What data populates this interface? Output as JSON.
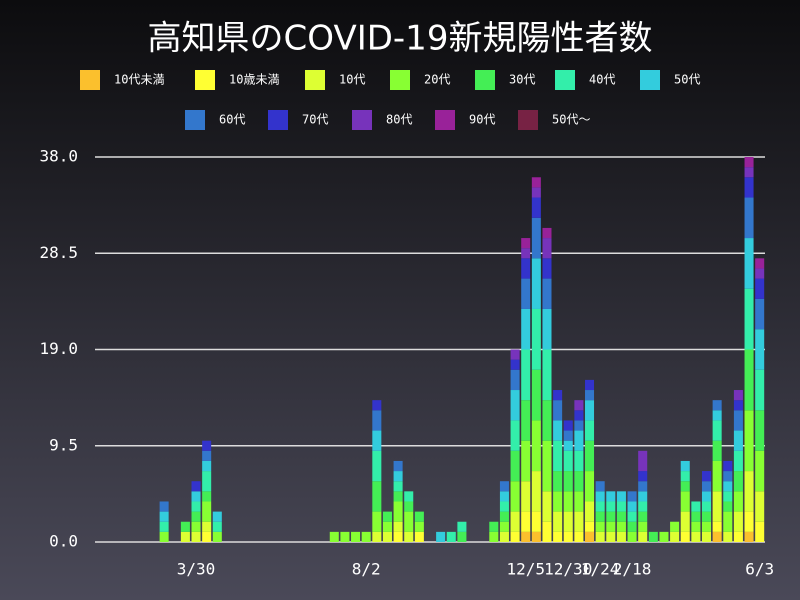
{
  "chart_data": {
    "type": "stacked_bar",
    "title": "高知県のCOVID-19新規陽性者数",
    "categories": [
      null,
      null,
      null,
      null,
      null,
      null,
      null,
      null,
      null,
      "3/30",
      null,
      null,
      null,
      null,
      null,
      null,
      null,
      null,
      null,
      null,
      null,
      null,
      null,
      null,
      null,
      "8/2",
      null,
      null,
      null,
      null,
      null,
      null,
      null,
      null,
      null,
      null,
      null,
      null,
      null,
      null,
      "12/5",
      null,
      null,
      null,
      "12/30",
      null,
      null,
      "1/24",
      null,
      null,
      "2/18",
      null,
      null,
      null,
      null,
      null,
      null,
      null,
      null,
      null,
      null,
      null,
      "6/3"
    ],
    "ylim": [
      0,
      38
    ],
    "yticks": [
      {
        "value": 0,
        "label": "0.0"
      },
      9.5,
      {
        "value": 19,
        "label": "19.0"
      },
      28.5,
      {
        "value": 38,
        "label": "38.0"
      }
    ],
    "grid": true,
    "series": [
      {
        "name": "10代未満",
        "color": "#fbc02d",
        "values": [
          0,
          0,
          0,
          0,
          0,
          0,
          0,
          0,
          0,
          0,
          0,
          0,
          0,
          0,
          0,
          0,
          0,
          0,
          0,
          0,
          0,
          0,
          0,
          0,
          0,
          0,
          0,
          0,
          0,
          0,
          0,
          0,
          0,
          0,
          0,
          0,
          0,
          0,
          0,
          0,
          1,
          1,
          0,
          0,
          0,
          0,
          1,
          0,
          0,
          0,
          0,
          0,
          0,
          0,
          0,
          0,
          0,
          0,
          1,
          0,
          0,
          1,
          0
        ]
      },
      {
        "name": "10歳未満",
        "color": "#ffff33",
        "values": [
          0,
          0,
          0,
          0,
          0,
          0,
          0,
          0,
          0,
          0,
          1,
          0,
          0,
          0,
          0,
          0,
          0,
          0,
          0,
          0,
          0,
          0,
          0,
          0,
          0,
          0,
          0,
          0,
          1,
          0,
          1,
          0,
          0,
          0,
          0,
          0,
          0,
          0,
          0,
          1,
          2,
          2,
          2,
          1,
          1,
          1,
          1,
          0,
          0,
          0,
          0,
          0,
          0,
          0,
          0,
          1,
          0,
          0,
          1,
          0,
          1,
          2,
          2
        ]
      },
      {
        "name": "10代",
        "color": "#ddff33",
        "values": [
          0,
          0,
          0,
          0,
          0,
          0,
          0,
          0,
          1,
          1,
          1,
          0,
          0,
          0,
          0,
          0,
          0,
          0,
          0,
          0,
          0,
          0,
          0,
          0,
          0,
          0,
          1,
          1,
          1,
          1,
          0,
          0,
          0,
          0,
          0,
          0,
          0,
          0,
          1,
          2,
          3,
          4,
          3,
          2,
          2,
          2,
          2,
          1,
          1,
          1,
          0,
          1,
          0,
          0,
          1,
          2,
          1,
          1,
          3,
          1,
          2,
          4,
          3
        ]
      },
      {
        "name": "20代",
        "color": "#88ff33",
        "values": [
          0,
          0,
          0,
          0,
          0,
          0,
          1,
          0,
          0,
          1,
          2,
          1,
          0,
          0,
          0,
          0,
          0,
          0,
          0,
          0,
          0,
          0,
          1,
          1,
          1,
          1,
          2,
          1,
          2,
          2,
          1,
          0,
          0,
          0,
          0,
          0,
          0,
          1,
          1,
          3,
          4,
          5,
          5,
          2,
          2,
          2,
          3,
          1,
          1,
          1,
          1,
          1,
          0,
          1,
          1,
          2,
          1,
          1,
          3,
          2,
          2,
          6,
          4
        ]
      },
      {
        "name": "30代",
        "color": "#44ee55",
        "values": [
          0,
          0,
          0,
          0,
          0,
          0,
          0,
          0,
          1,
          1,
          1,
          0,
          0,
          0,
          0,
          0,
          0,
          0,
          0,
          0,
          0,
          0,
          0,
          0,
          0,
          0,
          3,
          1,
          1,
          1,
          1,
          0,
          0,
          0,
          1,
          0,
          0,
          1,
          1,
          3,
          4,
          5,
          4,
          2,
          2,
          2,
          3,
          1,
          1,
          1,
          1,
          1,
          1,
          0,
          0,
          1,
          1,
          1,
          2,
          1,
          2,
          6,
          4
        ]
      },
      {
        "name": "40代",
        "color": "#33eeaa",
        "values": [
          0,
          0,
          0,
          0,
          0,
          0,
          1,
          0,
          0,
          1,
          2,
          1,
          0,
          0,
          0,
          0,
          0,
          0,
          0,
          0,
          0,
          0,
          0,
          0,
          0,
          0,
          3,
          0,
          1,
          1,
          0,
          0,
          0,
          1,
          1,
          0,
          0,
          0,
          1,
          3,
          5,
          6,
          5,
          3,
          2,
          2,
          2,
          1,
          1,
          1,
          1,
          1,
          0,
          0,
          0,
          1,
          1,
          1,
          2,
          1,
          2,
          6,
          4
        ]
      },
      {
        "name": "50代",
        "color": "#33ccdd",
        "values": [
          0,
          0,
          0,
          0,
          0,
          0,
          1,
          0,
          0,
          1,
          1,
          1,
          0,
          0,
          0,
          0,
          0,
          0,
          0,
          0,
          0,
          0,
          0,
          0,
          0,
          0,
          2,
          0,
          1,
          0,
          0,
          0,
          1,
          0,
          0,
          0,
          0,
          0,
          1,
          3,
          4,
          5,
          4,
          2,
          1,
          2,
          2,
          1,
          1,
          1,
          1,
          1,
          0,
          0,
          0,
          1,
          0,
          1,
          1,
          1,
          2,
          5,
          4
        ]
      },
      {
        "name": "60代",
        "color": "#3377cc",
        "values": [
          0,
          0,
          0,
          0,
          0,
          0,
          1,
          0,
          0,
          0,
          1,
          0,
          0,
          0,
          0,
          0,
          0,
          0,
          0,
          0,
          0,
          0,
          0,
          0,
          0,
          0,
          2,
          0,
          1,
          0,
          0,
          0,
          0,
          0,
          0,
          0,
          0,
          0,
          1,
          2,
          3,
          4,
          3,
          2,
          1,
          1,
          1,
          1,
          0,
          0,
          1,
          1,
          0,
          0,
          0,
          0,
          0,
          1,
          1,
          1,
          2,
          4,
          3
        ]
      },
      {
        "name": "70代",
        "color": "#3333cc",
        "values": [
          0,
          0,
          0,
          0,
          0,
          0,
          0,
          0,
          0,
          1,
          1,
          0,
          0,
          0,
          0,
          0,
          0,
          0,
          0,
          0,
          0,
          0,
          0,
          0,
          0,
          0,
          1,
          0,
          0,
          0,
          0,
          0,
          0,
          0,
          0,
          0,
          0,
          0,
          0,
          1,
          2,
          2,
          2,
          1,
          1,
          1,
          1,
          0,
          0,
          0,
          0,
          1,
          0,
          0,
          0,
          0,
          0,
          1,
          0,
          1,
          1,
          2,
          2
        ]
      },
      {
        "name": "80代",
        "color": "#7733bb",
        "values": [
          0,
          0,
          0,
          0,
          0,
          0,
          0,
          0,
          0,
          0,
          0,
          0,
          0,
          0,
          0,
          0,
          0,
          0,
          0,
          0,
          0,
          0,
          0,
          0,
          0,
          0,
          0,
          0,
          0,
          0,
          0,
          0,
          0,
          0,
          0,
          0,
          0,
          0,
          0,
          1,
          1,
          1,
          2,
          0,
          0,
          1,
          0,
          0,
          0,
          0,
          0,
          2,
          0,
          0,
          0,
          0,
          0,
          0,
          0,
          0,
          1,
          1,
          1
        ]
      },
      {
        "name": "90代",
        "color": "#992299",
        "values": [
          0,
          0,
          0,
          0,
          0,
          0,
          0,
          0,
          0,
          0,
          0,
          0,
          0,
          0,
          0,
          0,
          0,
          0,
          0,
          0,
          0,
          0,
          0,
          0,
          0,
          0,
          0,
          0,
          0,
          0,
          0,
          0,
          0,
          0,
          0,
          0,
          0,
          0,
          0,
          0,
          1,
          1,
          1,
          0,
          0,
          0,
          0,
          0,
          0,
          0,
          0,
          0,
          0,
          0,
          0,
          0,
          0,
          0,
          0,
          0,
          0,
          1,
          1
        ]
      },
      {
        "name": "50代〜",
        "color": "#772244",
        "values": [
          0,
          0,
          0,
          0,
          0,
          0,
          0,
          0,
          0,
          0,
          0,
          0,
          0,
          0,
          0,
          0,
          0,
          0,
          0,
          0,
          0,
          0,
          0,
          0,
          0,
          0,
          0,
          0,
          0,
          0,
          0,
          0,
          0,
          0,
          0,
          0,
          0,
          0,
          0,
          0,
          0,
          0,
          0,
          0,
          0,
          0,
          0,
          0,
          0,
          0,
          0,
          0,
          0,
          0,
          0,
          0,
          0,
          0,
          0,
          0,
          0,
          0,
          0
        ]
      }
    ]
  }
}
